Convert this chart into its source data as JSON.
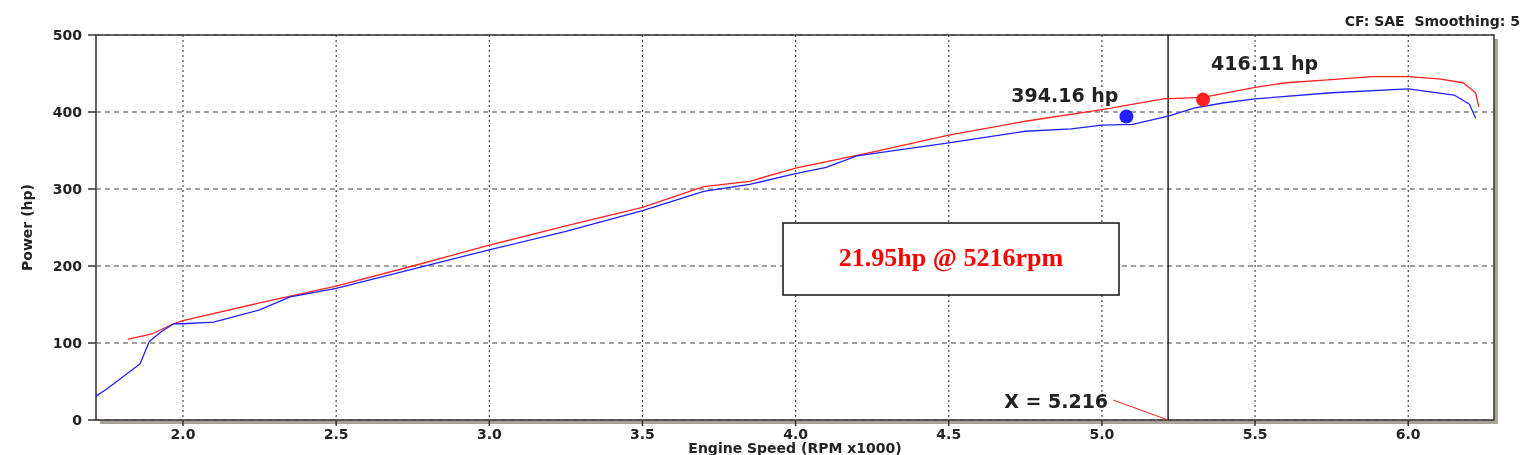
{
  "chart_data": {
    "type": "line",
    "xlabel": "Engine Speed (RPM x1000)",
    "ylabel": "Power (hp)",
    "xlim": [
      1.716,
      6.28
    ],
    "ylim": [
      0,
      500
    ],
    "xticks": [
      {
        "value": 2,
        "label": "2.0"
      },
      {
        "value": 2.5,
        "label": "2.5"
      },
      {
        "value": 3,
        "label": "3.0"
      },
      {
        "value": 3.5,
        "label": "3.5"
      },
      {
        "value": 4,
        "label": "4.0"
      },
      {
        "value": 4.5,
        "label": "4.5"
      },
      {
        "value": 5,
        "label": "5.0"
      },
      {
        "value": 5.5,
        "label": "5.5"
      },
      {
        "value": 6,
        "label": "6.0"
      }
    ],
    "yticks": [
      0,
      100,
      200,
      300,
      400,
      500
    ],
    "grid": true,
    "marker": "none",
    "series": [
      {
        "color": "#ff2020",
        "x": [
          1.82,
          1.9,
          1.97,
          2.0,
          2.25,
          2.5,
          2.75,
          3.0,
          3.25,
          3.5,
          3.7,
          3.85,
          4.0,
          4.25,
          4.5,
          4.75,
          5.0,
          5.2,
          5.33,
          5.5,
          5.6,
          5.75,
          5.88,
          6.0,
          6.1,
          6.18,
          6.22,
          6.23
        ],
        "values": [
          105,
          112,
          125,
          129,
          152,
          174,
          200,
          227,
          252,
          276,
          303,
          310,
          327,
          348,
          370,
          388,
          403,
          417,
          419,
          432,
          438,
          442,
          446,
          446,
          443,
          438,
          425,
          407
        ]
      },
      {
        "color": "#2020ff",
        "x": [
          1.716,
          1.75,
          1.8,
          1.86,
          1.89,
          1.93,
          1.97,
          2.0,
          2.1,
          2.25,
          2.35,
          2.5,
          2.75,
          3.0,
          3.25,
          3.5,
          3.7,
          3.85,
          4.0,
          4.1,
          4.2,
          4.5,
          4.75,
          4.9,
          5.0,
          5.1,
          5.22,
          5.3,
          5.4,
          5.5,
          5.75,
          6.0,
          6.15,
          6.2,
          6.22
        ],
        "values": [
          31,
          40,
          55,
          73,
          102,
          115,
          125,
          125,
          127,
          143,
          160,
          171,
          196,
          221,
          245,
          272,
          297,
          306,
          320,
          328,
          343,
          360,
          375,
          378,
          383,
          384,
          395,
          405,
          412,
          417,
          425,
          430,
          422,
          410,
          392
        ]
      },
      {
        "type": "scatter",
        "marker": "circle",
        "color": "#ff2020",
        "x": [
          5.33
        ],
        "values": [
          416.11
        ],
        "value_labels": [
          "416.11 hp"
        ]
      },
      {
        "type": "scatter",
        "marker": "circle",
        "color": "#2020ff",
        "x": [
          5.08
        ],
        "values": [
          394.16
        ],
        "value_labels": [
          "394.16 hp"
        ]
      }
    ],
    "ref_lines": [
      {
        "axis": "x",
        "value": 5.216,
        "label": "X = 5.216",
        "color": "#000000"
      }
    ],
    "annotations": [
      "21.95hp @ 5216rpm",
      "CF: SAE  Smoothing: 5"
    ]
  }
}
